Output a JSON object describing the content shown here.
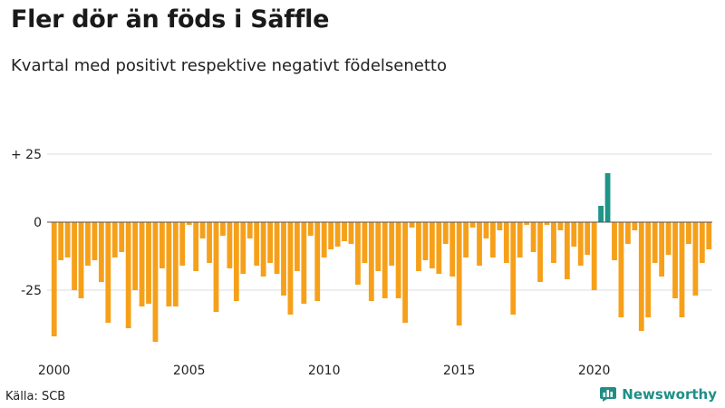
{
  "title": "Fler dör än föds i Säffle",
  "subtitle": "Kvartal med positivt respektive negativt födelsenetto",
  "source": "Källa: SCB",
  "brand": "Newsworthy",
  "colors": {
    "negative": "#f6a01a",
    "positive": "#1f9488",
    "grid": "#dddddd",
    "zero": "#555555"
  },
  "chart_data": {
    "type": "bar",
    "title": "Fler dör än föds i Säffle",
    "subtitle": "Kvartal med positivt respektive negativt födelsenetto",
    "xlabel": "",
    "ylabel": "",
    "ylim": [
      -45,
      25
    ],
    "yticks": [
      {
        "value": 25,
        "label": "+ 25"
      },
      {
        "value": 0,
        "label": "0"
      },
      {
        "value": -25,
        "label": "-25"
      }
    ],
    "xticks": [
      {
        "year": 2000,
        "label": "2000"
      },
      {
        "year": 2005,
        "label": "2005"
      },
      {
        "year": 2010,
        "label": "2010"
      },
      {
        "year": 2015,
        "label": "2015"
      },
      {
        "year": 2020,
        "label": "2020"
      }
    ],
    "start_year": 2000,
    "start_quarter": 1,
    "values": [
      -42,
      -14,
      -13,
      -25,
      -28,
      -16,
      -14,
      -22,
      -37,
      -13,
      -11,
      -39,
      -25,
      -31,
      -30,
      -44,
      -17,
      -31,
      -31,
      -16,
      -1,
      -18,
      -6,
      -15,
      -33,
      -5,
      -17,
      -29,
      -19,
      -6,
      -16,
      -20,
      -15,
      -19,
      -27,
      -34,
      -18,
      -30,
      -5,
      -29,
      -13,
      -10,
      -9,
      -7,
      -8,
      -23,
      -15,
      -29,
      -18,
      -28,
      -16,
      -28,
      -37,
      -2,
      -18,
      -14,
      -17,
      -19,
      -8,
      -20,
      -38,
      -13,
      -2,
      -16,
      -6,
      -13,
      -3,
      -15,
      -34,
      -13,
      -1,
      -11,
      -22,
      -1,
      -15,
      -3,
      -21,
      -9,
      -16,
      -12,
      -25,
      6,
      18,
      -14,
      -35,
      -8,
      -3,
      -40,
      -35,
      -15,
      -20,
      -12,
      -28,
      -35,
      -8,
      -27,
      -15,
      -10
    ]
  }
}
